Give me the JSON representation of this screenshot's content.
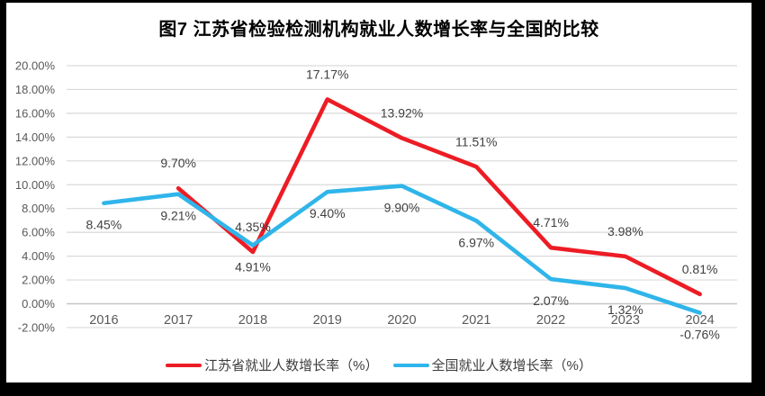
{
  "title": "图7  江苏省检验检测机构就业人数增长率与全国的比较",
  "legend": [
    {
      "label": "江苏省就业人数增长率（%）",
      "color": "#ED1C24"
    },
    {
      "label": "全国就业人数增长率（%）",
      "color": "#2FB5EA"
    }
  ],
  "chart_data": {
    "type": "line",
    "title": "图7  江苏省检验检测机构就业人数增长率与全国的比较",
    "categories": [
      "2016",
      "2017",
      "2018",
      "2019",
      "2020",
      "2021",
      "2022",
      "2023",
      "2024"
    ],
    "series": [
      {
        "name": "江苏省就业人数增长率（%）",
        "color": "#ED1C24",
        "values": [
          null,
          9.7,
          4.35,
          17.17,
          13.92,
          11.51,
          4.71,
          3.98,
          0.81
        ],
        "labels": [
          null,
          "9.70%",
          "4.35%",
          "17.17%",
          "13.92%",
          "11.51%",
          "4.71%",
          "3.98%",
          "0.81%"
        ],
        "label_position": "above"
      },
      {
        "name": "全国就业人数增长率（%）",
        "color": "#2FB5EA",
        "values": [
          8.45,
          9.21,
          4.91,
          9.4,
          9.9,
          6.97,
          2.07,
          1.32,
          -0.76
        ],
        "labels": [
          "8.45%",
          "9.21%",
          "4.91%",
          "9.40%",
          "9.90%",
          "6.97%",
          "2.07%",
          "1.32%",
          "-0.76%"
        ],
        "label_position": "below"
      }
    ],
    "ylim": [
      -2,
      20
    ],
    "ytick_step": 2,
    "yticks": [
      "20.00%",
      "18.00%",
      "16.00%",
      "14.00%",
      "12.00%",
      "10.00%",
      "8.00%",
      "6.00%",
      "4.00%",
      "2.00%",
      "0.00%",
      "-2.00%"
    ],
    "grid": true,
    "grid_color": "#D9D9D9",
    "axis_label_color": "#595959",
    "data_label_color": "#3F3F3F",
    "legend_position": "bottom"
  }
}
